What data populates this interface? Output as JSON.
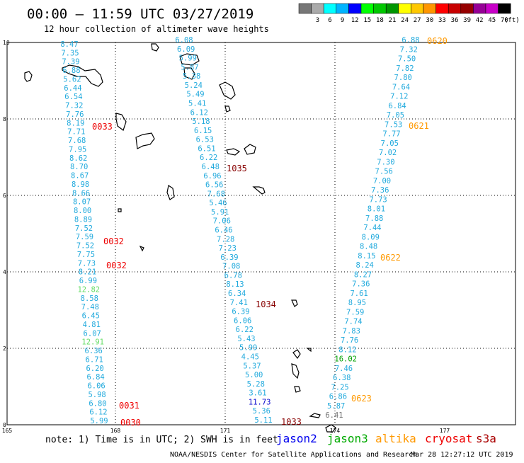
{
  "header": {
    "title": "00:00 – 11:59 UTC 03/27/2019",
    "subtitle": "12 hour collection of altimeter wave heights"
  },
  "legend": {
    "unit": "(ft)",
    "bins": [
      {
        "label": "",
        "color": "#777777"
      },
      {
        "label": "3",
        "color": "#aaaaaa"
      },
      {
        "label": "6",
        "color": "#00ffff"
      },
      {
        "label": "9",
        "color": "#00b4ff"
      },
      {
        "label": "12",
        "color": "#0000ff"
      },
      {
        "label": "15",
        "color": "#00ff00"
      },
      {
        "label": "18",
        "color": "#00c800"
      },
      {
        "label": "21",
        "color": "#009600"
      },
      {
        "label": "24",
        "color": "#ffff00"
      },
      {
        "label": "27",
        "color": "#ffc800"
      },
      {
        "label": "30",
        "color": "#ff9600"
      },
      {
        "label": "33",
        "color": "#ff0000"
      },
      {
        "label": "36",
        "color": "#c80000"
      },
      {
        "label": "39",
        "color": "#960000"
      },
      {
        "label": "42",
        "color": "#960096"
      },
      {
        "label": "45",
        "color": "#c800c8"
      },
      {
        "label": "70",
        "color": "#000000"
      }
    ]
  },
  "axes": {
    "lon_ticks": [
      "165",
      "168",
      "171",
      "174",
      "177"
    ],
    "lat_ticks": [
      "0",
      "2",
      "4",
      "6",
      "8",
      "10"
    ]
  },
  "tracks": [
    {
      "id": "track-left",
      "values": [
        "8.47",
        "7.35",
        "7.39",
        "6.88",
        "5.62",
        "6.44",
        "6.54",
        "7.32",
        "7.76",
        "8.19",
        "7.71",
        "7.68",
        "7.95",
        "8.62",
        "8.70",
        "8.67",
        "8.98",
        "8.66",
        "8.07",
        "8.00",
        "8.89",
        "7.52",
        "7.59",
        "7.52",
        "7.75",
        "7.73",
        "8.21",
        "6.99",
        "12.82",
        "8.58",
        "7.48",
        "6.45",
        "4.81",
        "6.07",
        "12.91",
        "6.36",
        "6.71",
        "6.20",
        "6.84",
        "6.06",
        "5.98",
        "6.80",
        "6.12",
        "5.99"
      ],
      "colors": {
        "28": "#66dd66",
        "34": "#66dd66"
      }
    },
    {
      "id": "track-middle",
      "values": [
        "6.08",
        "6.09",
        "5.99",
        "5.87",
        "5.38",
        "5.24",
        "5.49",
        "5.41",
        "6.12",
        "5.18",
        "6.15",
        "6.53",
        "6.51",
        "6.22",
        "6.48",
        "6.96",
        "6.56",
        "7.68",
        "5.46",
        "5.91",
        "7.06",
        "6.46",
        "7.28",
        "7.23",
        "6.39",
        "7.08",
        "6.78",
        "8.13",
        "6.34",
        "7.41",
        "6.39",
        "6.06",
        "6.22",
        "5.43",
        "5.99",
        "4.45",
        "5.37",
        "5.00",
        "5.28",
        "3.61",
        "11.73",
        "5.36",
        "5.11"
      ],
      "colors": {
        "40": "#0000cc"
      }
    },
    {
      "id": "track-right",
      "values": [
        "6.88",
        "7.32",
        "7.50",
        "7.82",
        "7.80",
        "7.64",
        "7.12",
        "6.84",
        "7.05",
        "7.53",
        "7.77",
        "7.05",
        "7.02",
        "7.30",
        "7.56",
        "7.00",
        "7.36",
        "7.73",
        "8.01",
        "7.88",
        "7.44",
        "8.09",
        "8.48",
        "8.15",
        "8.24",
        "8.27",
        "7.36",
        "7.61",
        "8.95",
        "7.59",
        "7.74",
        "7.83",
        "7.76",
        "8.12",
        "16.02",
        "7.46",
        "6.38",
        "7.25",
        "6.86",
        "5.87",
        "6.41"
      ],
      "colors": {
        "34": "#00a000",
        "40": "#777777"
      }
    }
  ],
  "time_labels": [
    {
      "text": "0620",
      "color": "#ff9900"
    },
    {
      "text": "0621",
      "color": "#ff9900"
    },
    {
      "text": "0622",
      "color": "#ff9900"
    },
    {
      "text": "0623",
      "color": "#ff9900"
    },
    {
      "text": "0033",
      "color": "#ee0000"
    },
    {
      "text": "0032",
      "color": "#ee0000"
    },
    {
      "text": "0032",
      "color": "#ee0000"
    },
    {
      "text": "0031",
      "color": "#ee0000"
    },
    {
      "text": "0030",
      "color": "#ee0000"
    },
    {
      "text": "1035",
      "color": "#880000"
    },
    {
      "text": "1034",
      "color": "#880000"
    },
    {
      "text": "1033",
      "color": "#880000"
    }
  ],
  "footer": {
    "note": "note: 1) Time is in UTC; 2) SWH is in feet",
    "credit": "NOAA/NESDIS Center for Satellite Applications and Research",
    "timestamp": "Mar 28 12:27:12 UTC 2019",
    "satellites": [
      {
        "name": "jason2",
        "color": "#0000ee"
      },
      {
        "name": "jason3",
        "color": "#00aa00"
      },
      {
        "name": "altika",
        "color": "#ff9900"
      },
      {
        "name": "cryosat",
        "color": "#ee0000"
      },
      {
        "name": "s3a",
        "color": "#aa0000"
      }
    ]
  },
  "colors": {
    "default_value": "#22aadd",
    "grid": "#000000"
  }
}
